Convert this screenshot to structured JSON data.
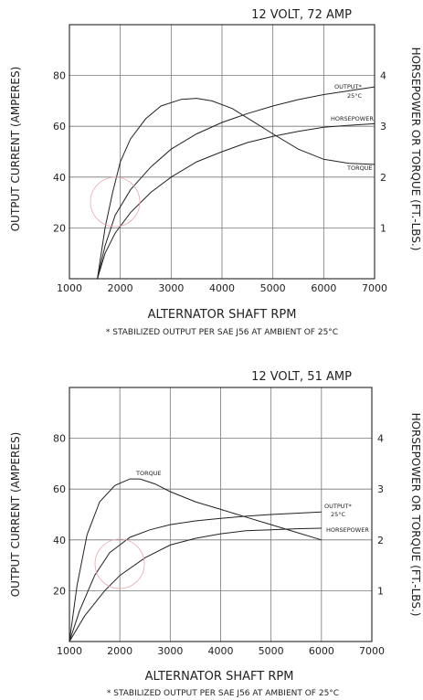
{
  "chart_data": [
    {
      "type": "line",
      "title": "12 VOLT, 72 AMP",
      "xlabel": "ALTERNATOR SHAFT RPM",
      "ylabel": "OUTPUT CURRENT (AMPERES)",
      "y2label": "HORSEPOWER OR TORQUE (FT.-LBS.)",
      "footnote": "* STABILIZED OUTPUT PER SAE J56 AT AMBIENT OF 25°C",
      "xlim": [
        1000,
        7000
      ],
      "ylim": [
        0,
        100
      ],
      "y2lim": [
        0,
        5
      ],
      "x_ticks": [
        "1000",
        "2000",
        "3000",
        "4000",
        "5000",
        "6000",
        "7000"
      ],
      "y_ticks": [
        "20",
        "40",
        "60",
        "80"
      ],
      "y2_ticks": [
        "1",
        "2",
        "3",
        "4"
      ],
      "grid": true,
      "series": [
        {
          "name": "OUTPUT* 25°C",
          "axis": "left",
          "x": [
            1550,
            1700,
            1900,
            2200,
            2600,
            3000,
            3500,
            4000,
            4500,
            5000,
            5500,
            6000,
            6500,
            7000
          ],
          "y": [
            0,
            13,
            25,
            35,
            44,
            51,
            57,
            61.5,
            65,
            68,
            70.5,
            72.5,
            74,
            75.5
          ]
        },
        {
          "name": "HORSEPOWER",
          "axis": "right",
          "x": [
            1550,
            1700,
            1900,
            2200,
            2600,
            3000,
            3500,
            4000,
            4500,
            5000,
            5500,
            6000,
            6500,
            7000
          ],
          "y": [
            0,
            0.5,
            0.9,
            1.3,
            1.7,
            2.0,
            2.3,
            2.5,
            2.68,
            2.8,
            2.9,
            2.98,
            3.02,
            3.05
          ]
        },
        {
          "name": "TORQUE",
          "axis": "right",
          "x": [
            1550,
            1700,
            1850,
            2000,
            2200,
            2500,
            2800,
            3200,
            3500,
            3800,
            4200,
            4600,
            5000,
            5500,
            6000,
            6500,
            7000
          ],
          "y": [
            0,
            1.0,
            1.7,
            2.3,
            2.75,
            3.15,
            3.4,
            3.53,
            3.55,
            3.5,
            3.35,
            3.1,
            2.85,
            2.55,
            2.35,
            2.27,
            2.25
          ]
        }
      ],
      "labels": {
        "output": "OUTPUT*",
        "output_temp": "25°C",
        "horsepower": "HORSEPOWER",
        "torque": "TORQUE"
      }
    },
    {
      "type": "line",
      "title": "12 VOLT, 51 AMP",
      "xlabel": "ALTERNATOR SHAFT RPM",
      "ylabel": "OUTPUT CURRENT (AMPERES)",
      "y2label": "HORSEPOWER OR TORQUE (FT.-LBS.)",
      "footnote": "* STABILIZED OUTPUT PER SAE J56 AT AMBIENT OF 25°C",
      "xlim": [
        1000,
        7000
      ],
      "ylim": [
        0,
        100
      ],
      "y2lim": [
        0,
        5
      ],
      "x_ticks": [
        "1000",
        "2000",
        "3000",
        "4000",
        "5000",
        "6000",
        "7000"
      ],
      "y_ticks": [
        "20",
        "40",
        "60",
        "80"
      ],
      "y2_ticks": [
        "1",
        "2",
        "3",
        "4"
      ],
      "grid": true,
      "series": [
        {
          "name": "OUTPUT* 25°C",
          "axis": "left",
          "x": [
            1000,
            1200,
            1500,
            1800,
            2200,
            2600,
            3000,
            3500,
            4000,
            4500,
            5000,
            5500,
            6000
          ],
          "y": [
            0,
            12,
            26,
            35,
            41,
            44,
            46,
            47.5,
            48.5,
            49.3,
            50,
            50.5,
            51
          ]
        },
        {
          "name": "HORSEPOWER",
          "axis": "right",
          "x": [
            1000,
            1300,
            1700,
            2000,
            2500,
            3000,
            3500,
            4000,
            4500,
            5000,
            5500,
            6000
          ],
          "y": [
            0,
            0.5,
            1.0,
            1.3,
            1.65,
            1.9,
            2.03,
            2.12,
            2.18,
            2.2,
            2.22,
            2.23
          ]
        },
        {
          "name": "TORQUE",
          "axis": "right",
          "x": [
            1000,
            1150,
            1350,
            1600,
            1900,
            2200,
            2400,
            2700,
            3000,
            3500,
            4000,
            4500,
            5000,
            5500,
            6000
          ],
          "y": [
            0,
            1.1,
            2.1,
            2.75,
            3.07,
            3.2,
            3.2,
            3.1,
            2.95,
            2.75,
            2.6,
            2.45,
            2.3,
            2.15,
            2.0
          ]
        }
      ],
      "labels": {
        "output": "OUTPUT*",
        "output_temp": "25°C",
        "horsepower": "HORSEPOWER",
        "torque": "TORQUE"
      }
    }
  ]
}
